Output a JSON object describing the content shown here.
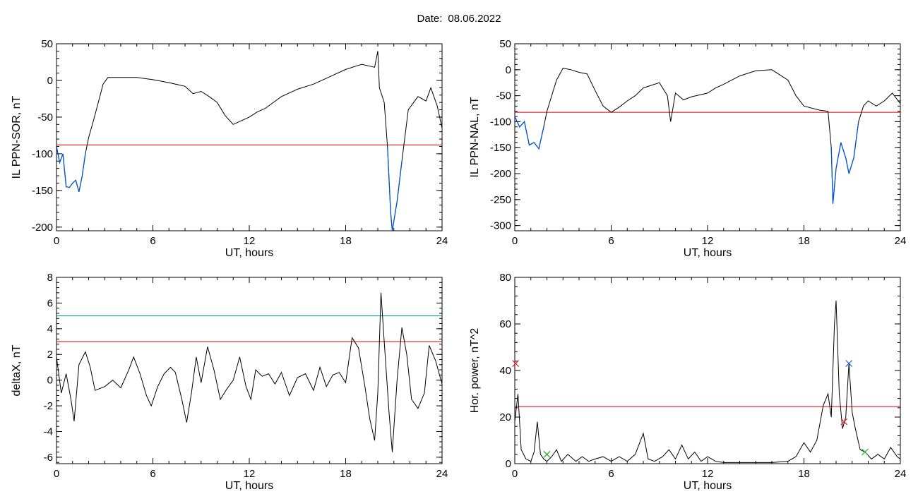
{
  "header": {
    "date_label": "Date:",
    "date_value": "08.06.2022"
  },
  "colors": {
    "series": "#000000",
    "highlight": "#0055cc",
    "threshold_red": "#dd0000",
    "threshold_teal": "#008888",
    "marker_blue": "#2266dd",
    "marker_red": "#dd2222",
    "marker_green": "#22aa22"
  },
  "chart_data": [
    {
      "type": "line",
      "ylabel": "IL PPN-SOR, nT",
      "xlabel": "UT, hours",
      "xlim": [
        0,
        24
      ],
      "ylim": [
        -205,
        50
      ],
      "xticks": [
        0,
        6,
        12,
        18,
        24
      ],
      "yticks": [
        -200,
        -150,
        -100,
        -50,
        0,
        50
      ],
      "threshold": -88,
      "series": [
        {
          "values": [
            [
              0,
              -90
            ],
            [
              0.2,
              -112
            ],
            [
              0.4,
              -100
            ],
            [
              0.6,
              -145
            ],
            [
              0.8,
              -146
            ],
            [
              1.0,
              -140
            ],
            [
              1.2,
              -136
            ],
            [
              1.4,
              -152
            ],
            [
              1.6,
              -130
            ],
            [
              1.8,
              -100
            ],
            [
              2.0,
              -78
            ],
            [
              2.3,
              -55
            ],
            [
              2.6,
              -30
            ],
            [
              2.9,
              -5
            ],
            [
              3.2,
              4
            ],
            [
              4.0,
              4
            ],
            [
              5.0,
              4
            ],
            [
              6.0,
              1
            ],
            [
              7.0,
              -3
            ],
            [
              8.0,
              -8
            ],
            [
              8.5,
              -18
            ],
            [
              9.0,
              -15
            ],
            [
              9.5,
              -22
            ],
            [
              10.0,
              -30
            ],
            [
              10.5,
              -48
            ],
            [
              11.0,
              -60
            ],
            [
              11.5,
              -55
            ],
            [
              12.0,
              -50
            ],
            [
              12.5,
              -43
            ],
            [
              13.0,
              -38
            ],
            [
              13.5,
              -30
            ],
            [
              14.0,
              -22
            ],
            [
              15.0,
              -12
            ],
            [
              16.0,
              -5
            ],
            [
              17.0,
              5
            ],
            [
              18.0,
              15
            ],
            [
              19.0,
              22
            ],
            [
              19.8,
              18
            ],
            [
              20.0,
              40
            ],
            [
              20.1,
              -10
            ],
            [
              20.4,
              -30
            ],
            [
              20.6,
              -90
            ],
            [
              20.8,
              -180
            ],
            [
              20.9,
              -205
            ],
            [
              21.2,
              -165
            ],
            [
              21.5,
              -110
            ],
            [
              21.9,
              -40
            ],
            [
              22.5,
              -22
            ],
            [
              23.0,
              -28
            ],
            [
              23.3,
              -10
            ],
            [
              23.7,
              -35
            ],
            [
              24.0,
              -65
            ]
          ]
        }
      ]
    },
    {
      "type": "line",
      "ylabel": "IL PPN-NAL, nT",
      "xlabel": "UT, hours",
      "xlim": [
        0,
        24
      ],
      "ylim": [
        -310,
        50
      ],
      "xticks": [
        0,
        6,
        12,
        18,
        24
      ],
      "yticks": [
        -300,
        -250,
        -200,
        -150,
        -100,
        -50,
        0,
        50
      ],
      "threshold": -82,
      "series": [
        {
          "values": [
            [
              0,
              -90
            ],
            [
              0.3,
              -110
            ],
            [
              0.6,
              -100
            ],
            [
              0.9,
              -145
            ],
            [
              1.2,
              -140
            ],
            [
              1.5,
              -152
            ],
            [
              1.8,
              -110
            ],
            [
              2.0,
              -80
            ],
            [
              2.3,
              -50
            ],
            [
              2.6,
              -20
            ],
            [
              3.0,
              3
            ],
            [
              3.5,
              0
            ],
            [
              4.0,
              -5
            ],
            [
              4.5,
              -8
            ],
            [
              5.0,
              -40
            ],
            [
              5.5,
              -70
            ],
            [
              6.0,
              -82
            ],
            [
              6.5,
              -72
            ],
            [
              7.0,
              -60
            ],
            [
              7.5,
              -50
            ],
            [
              8.0,
              -35
            ],
            [
              8.5,
              -30
            ],
            [
              9.0,
              -25
            ],
            [
              9.5,
              -50
            ],
            [
              9.7,
              -100
            ],
            [
              10.0,
              -45
            ],
            [
              10.5,
              -58
            ],
            [
              11.0,
              -52
            ],
            [
              12.0,
              -45
            ],
            [
              12.5,
              -35
            ],
            [
              13.0,
              -28
            ],
            [
              14.0,
              -12
            ],
            [
              15.0,
              -2
            ],
            [
              16.0,
              0
            ],
            [
              17.0,
              -20
            ],
            [
              17.5,
              -50
            ],
            [
              18.0,
              -70
            ],
            [
              19.0,
              -78
            ],
            [
              19.5,
              -80
            ],
            [
              19.7,
              -150
            ],
            [
              19.8,
              -258
            ],
            [
              20.0,
              -190
            ],
            [
              20.3,
              -140
            ],
            [
              20.6,
              -170
            ],
            [
              20.8,
              -200
            ],
            [
              21.1,
              -170
            ],
            [
              21.4,
              -100
            ],
            [
              21.7,
              -70
            ],
            [
              22.0,
              -60
            ],
            [
              22.5,
              -70
            ],
            [
              23.0,
              -60
            ],
            [
              23.5,
              -45
            ],
            [
              24.0,
              -65
            ]
          ]
        }
      ]
    },
    {
      "type": "line",
      "ylabel": "deltaX, nT",
      "xlabel": "UT, hours",
      "xlim": [
        0,
        24
      ],
      "ylim": [
        -6.5,
        8
      ],
      "xticks": [
        0,
        6,
        12,
        18,
        24
      ],
      "yticks": [
        -6,
        -4,
        -2,
        0,
        2,
        4,
        6,
        8
      ],
      "thresholds": [
        5,
        3
      ],
      "series": [
        {
          "values": [
            [
              0,
              1.8
            ],
            [
              0.3,
              -1
            ],
            [
              0.6,
              0.5
            ],
            [
              0.9,
              -1.5
            ],
            [
              1.1,
              -3.2
            ],
            [
              1.4,
              1.2
            ],
            [
              1.8,
              2.2
            ],
            [
              2.1,
              1
            ],
            [
              2.4,
              -0.8
            ],
            [
              3.0,
              -0.5
            ],
            [
              3.5,
              0
            ],
            [
              4.0,
              -0.6
            ],
            [
              4.5,
              0.8
            ],
            [
              4.8,
              1.8
            ],
            [
              5.2,
              0.5
            ],
            [
              5.6,
              -1.2
            ],
            [
              5.9,
              -2
            ],
            [
              6.3,
              -0.5
            ],
            [
              6.7,
              0.5
            ],
            [
              7.1,
              1
            ],
            [
              7.4,
              0.6
            ],
            [
              7.8,
              -1.5
            ],
            [
              8.1,
              -3.3
            ],
            [
              8.4,
              -1
            ],
            [
              8.7,
              1.8
            ],
            [
              9.0,
              -0.2
            ],
            [
              9.4,
              2.6
            ],
            [
              9.8,
              0.8
            ],
            [
              10.2,
              -1.5
            ],
            [
              10.6,
              -0.7
            ],
            [
              11.0,
              0
            ],
            [
              11.4,
              1.8
            ],
            [
              11.8,
              -0.5
            ],
            [
              12.1,
              -1.5
            ],
            [
              12.4,
              0.8
            ],
            [
              12.8,
              0.3
            ],
            [
              13.2,
              0.5
            ],
            [
              13.6,
              -0.3
            ],
            [
              14.0,
              0.6
            ],
            [
              14.5,
              -1.2
            ],
            [
              15.0,
              0.2
            ],
            [
              15.5,
              0.5
            ],
            [
              16.0,
              -0.8
            ],
            [
              16.4,
              1
            ],
            [
              16.8,
              -0.5
            ],
            [
              17.2,
              0.4
            ],
            [
              17.6,
              0.6
            ],
            [
              18.0,
              -0.2
            ],
            [
              18.4,
              3.3
            ],
            [
              18.8,
              2.5
            ],
            [
              19.2,
              -0.5
            ],
            [
              19.5,
              -3
            ],
            [
              19.8,
              -4.7
            ],
            [
              20.0,
              -1
            ],
            [
              20.2,
              6.8
            ],
            [
              20.4,
              3
            ],
            [
              20.7,
              -2.5
            ],
            [
              20.9,
              -5.6
            ],
            [
              21.2,
              0
            ],
            [
              21.5,
              4.1
            ],
            [
              21.8,
              2
            ],
            [
              22.1,
              -1.5
            ],
            [
              22.5,
              -2.2
            ],
            [
              22.9,
              -1
            ],
            [
              23.2,
              2.7
            ],
            [
              23.6,
              1.5
            ],
            [
              24.0,
              -0.3
            ]
          ]
        }
      ]
    },
    {
      "type": "line",
      "ylabel": "Hor. power, nT^2",
      "xlabel": "UT, hours",
      "xlim": [
        0,
        24
      ],
      "ylim": [
        0,
        80
      ],
      "xticks": [
        0,
        6,
        12,
        18,
        24
      ],
      "yticks": [
        0,
        20,
        40,
        60,
        80
      ],
      "threshold": 24.5,
      "markers": [
        {
          "x": 0.05,
          "y": 43,
          "color": "red"
        },
        {
          "x": 2.0,
          "y": 4,
          "color": "green"
        },
        {
          "x": 20.5,
          "y": 18,
          "color": "red"
        },
        {
          "x": 20.8,
          "y": 43,
          "color": "blue"
        },
        {
          "x": 21.8,
          "y": 5,
          "color": "green"
        }
      ],
      "series": [
        {
          "values": [
            [
              0,
              18
            ],
            [
              0.2,
              30
            ],
            [
              0.4,
              6
            ],
            [
              0.7,
              2
            ],
            [
              1.0,
              1
            ],
            [
              1.2,
              5
            ],
            [
              1.4,
              18
            ],
            [
              1.6,
              4
            ],
            [
              1.8,
              2
            ],
            [
              2.0,
              1
            ],
            [
              2.3,
              3
            ],
            [
              2.6,
              6
            ],
            [
              2.9,
              1
            ],
            [
              3.3,
              4
            ],
            [
              3.8,
              1
            ],
            [
              4.2,
              3
            ],
            [
              4.6,
              1
            ],
            [
              5.0,
              2
            ],
            [
              5.5,
              3
            ],
            [
              6.0,
              1
            ],
            [
              6.5,
              3
            ],
            [
              7.0,
              1
            ],
            [
              7.5,
              4
            ],
            [
              8.0,
              13
            ],
            [
              8.3,
              2
            ],
            [
              8.7,
              1
            ],
            [
              9.2,
              3
            ],
            [
              9.6,
              6
            ],
            [
              10.0,
              2
            ],
            [
              10.4,
              8
            ],
            [
              10.8,
              2
            ],
            [
              11.2,
              5
            ],
            [
              11.6,
              1
            ],
            [
              12.0,
              3
            ],
            [
              12.5,
              1
            ],
            [
              13.0,
              0.5
            ],
            [
              14.0,
              0.5
            ],
            [
              15.0,
              0.5
            ],
            [
              16.0,
              0.5
            ],
            [
              17.0,
              1
            ],
            [
              17.5,
              3
            ],
            [
              18.0,
              9
            ],
            [
              18.4,
              5
            ],
            [
              18.8,
              10
            ],
            [
              19.2,
              25
            ],
            [
              19.5,
              30
            ],
            [
              19.7,
              20
            ],
            [
              19.9,
              60
            ],
            [
              20.0,
              70
            ],
            [
              20.2,
              30
            ],
            [
              20.4,
              15
            ],
            [
              20.6,
              20
            ],
            [
              20.8,
              43
            ],
            [
              21.0,
              22
            ],
            [
              21.2,
              15
            ],
            [
              21.5,
              6
            ],
            [
              21.8,
              5
            ],
            [
              22.2,
              2
            ],
            [
              22.6,
              4
            ],
            [
              23.0,
              2
            ],
            [
              23.4,
              7
            ],
            [
              23.8,
              3
            ],
            [
              24.0,
              2
            ]
          ]
        }
      ]
    }
  ]
}
